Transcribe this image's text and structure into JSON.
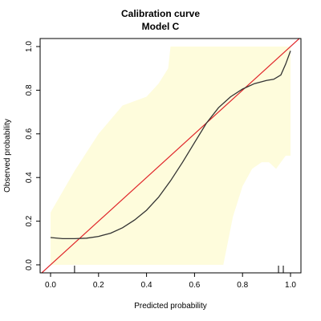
{
  "chart_data": {
    "type": "line",
    "title": "Calibration curve",
    "subtitle": "Model C",
    "xlabel": "Predicted probability",
    "ylabel": "Observed probability",
    "xlim": [
      0,
      1
    ],
    "ylim": [
      0,
      1
    ],
    "xticks": [
      "0.0",
      "0.2",
      "0.4",
      "0.6",
      "0.8",
      "1.0"
    ],
    "yticks": [
      "0.0",
      "0.2",
      "0.4",
      "0.6",
      "0.8",
      "1.0"
    ],
    "series": [
      {
        "values": [
          [
            0.0,
            0.125
          ],
          [
            0.05,
            0.12
          ],
          [
            0.1,
            0.12
          ],
          [
            0.15,
            0.122
          ],
          [
            0.2,
            0.13
          ],
          [
            0.25,
            0.145
          ],
          [
            0.3,
            0.17
          ],
          [
            0.35,
            0.205
          ],
          [
            0.4,
            0.25
          ],
          [
            0.45,
            0.31
          ],
          [
            0.5,
            0.385
          ],
          [
            0.55,
            0.47
          ],
          [
            0.6,
            0.56
          ],
          [
            0.65,
            0.65
          ],
          [
            0.7,
            0.72
          ],
          [
            0.75,
            0.77
          ],
          [
            0.8,
            0.805
          ],
          [
            0.85,
            0.83
          ],
          [
            0.9,
            0.845
          ],
          [
            0.93,
            0.85
          ],
          [
            0.96,
            0.87
          ],
          [
            0.98,
            0.92
          ],
          [
            1.0,
            0.98
          ]
        ]
      }
    ],
    "ci_band": {
      "upper": [
        [
          0.0,
          0.24
        ],
        [
          0.1,
          0.43
        ],
        [
          0.2,
          0.6
        ],
        [
          0.3,
          0.73
        ],
        [
          0.4,
          0.77
        ],
        [
          0.45,
          0.83
        ],
        [
          0.49,
          0.9
        ],
        [
          0.5,
          1.0
        ],
        [
          1.0,
          1.0
        ]
      ],
      "lower": [
        [
          0.0,
          0.0
        ],
        [
          0.72,
          0.0
        ],
        [
          0.76,
          0.22
        ],
        [
          0.8,
          0.36
        ],
        [
          0.84,
          0.44
        ],
        [
          0.88,
          0.47
        ],
        [
          0.91,
          0.47
        ],
        [
          0.94,
          0.44
        ],
        [
          0.96,
          0.47
        ],
        [
          0.98,
          0.5
        ],
        [
          1.0,
          0.5
        ]
      ],
      "color": "#fefcdc"
    },
    "reference_line": {
      "from": [
        0,
        0
      ],
      "to": [
        1,
        1
      ],
      "color": "#e0262a"
    },
    "rug_x": [
      0.1,
      0.95,
      0.97
    ],
    "line_color": "#333333",
    "grid": false
  }
}
